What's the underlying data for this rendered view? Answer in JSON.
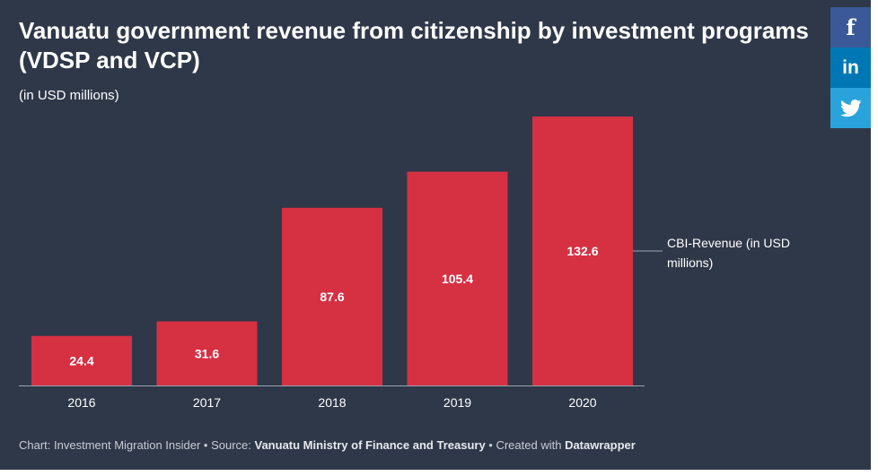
{
  "title": "Vanuatu government revenue from citizenship by investment programs (VDSP and VCP)",
  "subtitle": "(in USD millions)",
  "footer": {
    "prefix": "Chart: Investment Migration Insider • Source: ",
    "source": "Vanuatu Ministry of Finance and Treasury",
    "mid": " • Created with ",
    "tool": "Datawrapper"
  },
  "social": {
    "facebook_icon": "f",
    "linkedin_icon": "in",
    "twitter_icon": "bird"
  },
  "colors": {
    "background": "#2f3849",
    "bar": "#d63043",
    "facebook": "#3b5998",
    "linkedin": "#0077b5",
    "twitter": "#2aa3dd"
  },
  "chart_data": {
    "type": "bar",
    "categories": [
      "2016",
      "2017",
      "2018",
      "2019",
      "2020"
    ],
    "values": [
      24.4,
      31.6,
      87.6,
      105.4,
      132.6
    ],
    "value_labels": [
      "24.4",
      "31.6",
      "87.6",
      "105.4",
      "132.6"
    ],
    "series_label": "CBI-Revenue (in USD millions)",
    "title": "Vanuatu government revenue from citizenship by investment programs (VDSP and VCP)",
    "subtitle": "(in USD millions)",
    "ylim": [
      0,
      132.6
    ],
    "grid": false,
    "legend": "right"
  }
}
